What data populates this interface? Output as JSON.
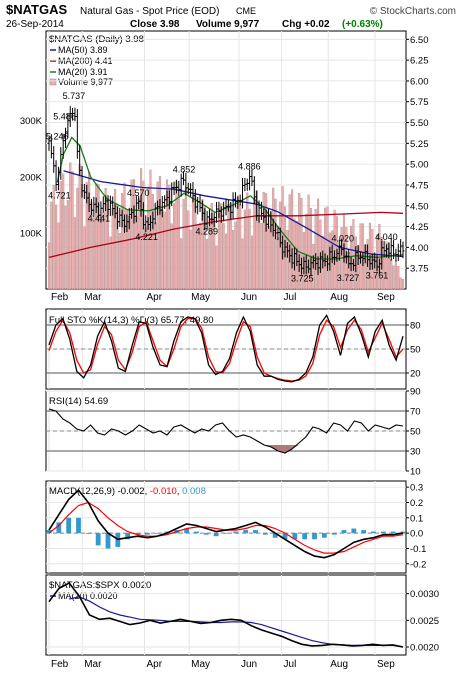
{
  "header": {
    "symbol": "$NATGAS",
    "description": "Natural Gas - Spot Price (EOD)",
    "exchange": "CME",
    "watermark": "© StockCharts.com",
    "date": "26-Sep-2014",
    "close_label": "Close 3.98",
    "volume_label": "Volume 9,977",
    "chg_label": "Chg +0.02",
    "chg_pct": "(+0.63%)"
  },
  "colors": {
    "price_bar": "#000000",
    "ma50": "#1a1a9a",
    "ma200": "#b00018",
    "ma20": "#1a7a1a",
    "volume": "#e8b0b0",
    "volume_edge": "#b08080",
    "fast_k": "#000000",
    "slow_d": "#ff0000",
    "macd_hist": "#3399cc",
    "rsi_fill": "#b07878",
    "panel_bg": "#ffffff",
    "grid": "#e6e6e6"
  },
  "chart_data": [
    {
      "panel": "price",
      "type": "ohlc",
      "title": "$NATGAS (Daily) 3.98",
      "legend": [
        {
          "name": "MA(50) 3.89",
          "color": "#1a1a9a"
        },
        {
          "name": "MA(200) 4.41",
          "color": "#b00018"
        },
        {
          "name": "MA(20) 3.91",
          "color": "#1a7a1a"
        },
        {
          "name": "Volume 9,977",
          "color": "#e8b0b0"
        }
      ],
      "ylim": [
        3.5,
        6.6
      ],
      "y_ticks": [
        "6.50",
        "6.25",
        "6.00",
        "5.75",
        "5.50",
        "5.25",
        "5.00",
        "4.75",
        "4.50",
        "4.25",
        "4.00",
        "3.75"
      ],
      "y_tick_values": [
        6.5,
        6.25,
        6.0,
        5.75,
        5.5,
        5.25,
        5.0,
        4.75,
        4.5,
        4.25,
        4.0,
        3.75
      ],
      "volume_ticks": [
        "300K",
        "200K",
        "100K"
      ],
      "volume_tick_values": [
        300000,
        200000,
        100000
      ],
      "volume_max": 460000,
      "annotations": [
        {
          "label": "5.737",
          "t": 24,
          "v": 5.737
        },
        {
          "label": "5.486",
          "t": 15,
          "v": 5.486
        },
        {
          "label": "5.246",
          "t": 8,
          "v": 5.246
        },
        {
          "label": "4.721",
          "t": 10,
          "v": 4.721
        },
        {
          "label": "4.441",
          "t": 48,
          "v": 4.441
        },
        {
          "label": "4.570",
          "t": 86,
          "v": 4.57
        },
        {
          "label": "4.852",
          "t": 130,
          "v": 4.852
        },
        {
          "label": "4.221",
          "t": 94,
          "v": 4.221
        },
        {
          "label": "4.289",
          "t": 152,
          "v": 4.289
        },
        {
          "label": "4.886",
          "t": 193,
          "v": 4.886
        },
        {
          "label": "4.020",
          "t": 283,
          "v": 4.02
        },
        {
          "label": "4.040",
          "t": 325,
          "v": 4.04
        },
        {
          "label": "3.725",
          "t": 244,
          "v": 3.725
        },
        {
          "label": "3.727",
          "t": 288,
          "v": 3.727
        },
        {
          "label": "3.761",
          "t": 316,
          "v": 3.761
        }
      ],
      "anchors": [
        [
          0,
          5.25
        ],
        [
          8,
          4.75
        ],
        [
          14,
          5.35
        ],
        [
          20,
          5.55
        ],
        [
          24,
          5.74
        ],
        [
          28,
          5.0
        ],
        [
          34,
          4.62
        ],
        [
          40,
          4.5
        ],
        [
          48,
          4.44
        ],
        [
          56,
          4.55
        ],
        [
          64,
          4.4
        ],
        [
          72,
          4.28
        ],
        [
          80,
          4.4
        ],
        [
          86,
          4.55
        ],
        [
          94,
          4.22
        ],
        [
          100,
          4.38
        ],
        [
          106,
          4.5
        ],
        [
          112,
          4.55
        ],
        [
          120,
          4.7
        ],
        [
          130,
          4.8
        ],
        [
          138,
          4.62
        ],
        [
          146,
          4.45
        ],
        [
          152,
          4.3
        ],
        [
          160,
          4.4
        ],
        [
          168,
          4.45
        ],
        [
          176,
          4.5
        ],
        [
          184,
          4.6
        ],
        [
          190,
          4.8
        ],
        [
          194,
          4.86
        ],
        [
          200,
          4.45
        ],
        [
          206,
          4.38
        ],
        [
          212,
          4.3
        ],
        [
          218,
          4.2
        ],
        [
          224,
          4.02
        ],
        [
          232,
          3.9
        ],
        [
          240,
          3.82
        ],
        [
          246,
          3.76
        ],
        [
          252,
          3.8
        ],
        [
          260,
          3.82
        ],
        [
          268,
          3.85
        ],
        [
          276,
          3.92
        ],
        [
          283,
          4.0
        ],
        [
          288,
          3.78
        ],
        [
          294,
          3.85
        ],
        [
          300,
          3.9
        ],
        [
          306,
          3.88
        ],
        [
          312,
          3.82
        ],
        [
          316,
          3.78
        ],
        [
          320,
          3.92
        ],
        [
          325,
          4.0
        ],
        [
          330,
          3.94
        ],
        [
          336,
          3.95
        ],
        [
          341,
          3.98
        ]
      ],
      "ma50": [
        [
          14,
          4.92
        ],
        [
          50,
          4.79
        ],
        [
          90,
          4.72
        ],
        [
          120,
          4.7
        ],
        [
          150,
          4.62
        ],
        [
          180,
          4.56
        ],
        [
          200,
          4.52
        ],
        [
          220,
          4.43
        ],
        [
          250,
          4.22
        ],
        [
          280,
          4.0
        ],
        [
          310,
          3.92
        ],
        [
          341,
          3.89
        ]
      ],
      "ma200": [
        [
          0,
          3.88
        ],
        [
          40,
          4.0
        ],
        [
          80,
          4.1
        ],
        [
          120,
          4.22
        ],
        [
          160,
          4.31
        ],
        [
          200,
          4.38
        ],
        [
          240,
          4.38
        ],
        [
          280,
          4.4
        ],
        [
          320,
          4.42
        ],
        [
          341,
          4.41
        ]
      ],
      "ma20": [
        [
          8,
          4.78
        ],
        [
          14,
          5.12
        ],
        [
          22,
          5.32
        ],
        [
          30,
          5.22
        ],
        [
          40,
          4.85
        ],
        [
          56,
          4.58
        ],
        [
          76,
          4.45
        ],
        [
          96,
          4.44
        ],
        [
          114,
          4.5
        ],
        [
          130,
          4.65
        ],
        [
          148,
          4.52
        ],
        [
          160,
          4.42
        ],
        [
          176,
          4.5
        ],
        [
          194,
          4.62
        ],
        [
          208,
          4.46
        ],
        [
          222,
          4.22
        ],
        [
          240,
          3.95
        ],
        [
          258,
          3.86
        ],
        [
          276,
          3.86
        ],
        [
          296,
          3.9
        ],
        [
          316,
          3.88
        ],
        [
          341,
          3.91
        ]
      ],
      "volume_profile": [
        [
          0,
          150000
        ],
        [
          20,
          200000
        ],
        [
          34,
          190000
        ],
        [
          60,
          150000
        ],
        [
          90,
          190000
        ],
        [
          120,
          170000
        ],
        [
          160,
          130000
        ],
        [
          200,
          155000
        ],
        [
          230,
          160000
        ],
        [
          260,
          140000
        ],
        [
          290,
          110000
        ],
        [
          320,
          100000
        ],
        [
          341,
          20000
        ]
      ]
    },
    {
      "panel": "stochastic",
      "type": "line",
      "title": "Full STO %K(14,3) %D(3) 65.77, 49.80",
      "ylim": [
        0,
        100
      ],
      "y_ticks": [
        "80",
        "50",
        "20"
      ],
      "y_tick_values": [
        80,
        50,
        20
      ],
      "series": [
        {
          "name": "%K(14,3)",
          "color": "#000000",
          "values": [
            55,
            80,
            88,
            62,
            22,
            14,
            30,
            66,
            84,
            60,
            26,
            22,
            55,
            84,
            82,
            52,
            30,
            28,
            60,
            84,
            90,
            88,
            70,
            30,
            18,
            22,
            38,
            70,
            90,
            72,
            30,
            16,
            16,
            12,
            10,
            9,
            12,
            20,
            40,
            80,
            92,
            72,
            42,
            82,
            90,
            68,
            40,
            72,
            86,
            55,
            36,
            66
          ]
        },
        {
          "name": "%D(3)",
          "color": "#ff0000",
          "values": [
            48,
            72,
            86,
            70,
            36,
            20,
            24,
            56,
            78,
            68,
            36,
            24,
            46,
            78,
            84,
            60,
            36,
            28,
            50,
            78,
            88,
            88,
            76,
            40,
            22,
            20,
            32,
            60,
            84,
            78,
            40,
            20,
            16,
            13,
            11,
            10,
            11,
            16,
            32,
            68,
            86,
            78,
            52,
            74,
            86,
            74,
            46,
            64,
            82,
            62,
            40,
            50
          ]
        }
      ]
    },
    {
      "panel": "rsi",
      "type": "line",
      "title": "RSI(14) 54.69",
      "ylim": [
        10,
        90
      ],
      "y_ticks": [
        "90",
        "70",
        "50",
        "30",
        "10"
      ],
      "y_tick_values": [
        90,
        70,
        50,
        30,
        10
      ],
      "series": [
        {
          "name": "RSI(14)",
          "color": "#000000",
          "values": [
            72,
            70,
            62,
            58,
            52,
            50,
            56,
            48,
            46,
            52,
            50,
            46,
            50,
            56,
            52,
            48,
            50,
            46,
            54,
            56,
            52,
            48,
            52,
            50,
            56,
            58,
            50,
            44,
            46,
            44,
            40,
            36,
            34,
            30,
            28,
            32,
            38,
            44,
            54,
            52,
            48,
            58,
            56,
            50,
            60,
            58,
            50,
            56,
            54,
            52,
            56,
            55
          ]
        }
      ]
    },
    {
      "panel": "macd",
      "type": "line",
      "title": "MACD(12,26,9) -0.002, -0.010, 0.008",
      "title_parts": [
        "MACD(12,26,9) -0.002, ",
        "-0.010",
        ", ",
        "0.008"
      ],
      "ylim": [
        -0.26,
        0.34
      ],
      "y_ticks": [
        "0.3",
        "0.2",
        "0.1",
        "0.0",
        "-0.1",
        "-0.2"
      ],
      "y_tick_values": [
        0.3,
        0.2,
        0.1,
        0.0,
        -0.1,
        -0.2
      ],
      "series": [
        {
          "name": "MACD(12,26,9)",
          "color": "#000000",
          "values": [
            0.02,
            0.12,
            0.22,
            0.28,
            0.2,
            0.08,
            0.0,
            -0.04,
            -0.03,
            -0.02,
            -0.03,
            -0.02,
            0.0,
            0.03,
            0.06,
            0.05,
            0.03,
            0.01,
            0.02,
            0.03,
            0.05,
            0.07,
            0.04,
            0.0,
            -0.04,
            -0.08,
            -0.12,
            -0.15,
            -0.16,
            -0.14,
            -0.1,
            -0.06,
            -0.04,
            -0.03,
            -0.01,
            -0.01,
            0.0
          ]
        },
        {
          "name": "Signal",
          "color": "#ff0000",
          "values": [
            0.0,
            0.05,
            0.12,
            0.18,
            0.2,
            0.16,
            0.1,
            0.05,
            0.01,
            -0.01,
            -0.02,
            -0.02,
            -0.01,
            0.01,
            0.03,
            0.04,
            0.04,
            0.03,
            0.02,
            0.02,
            0.03,
            0.05,
            0.05,
            0.03,
            0.0,
            -0.04,
            -0.08,
            -0.11,
            -0.13,
            -0.13,
            -0.12,
            -0.09,
            -0.06,
            -0.04,
            -0.02,
            -0.02,
            -0.01
          ]
        },
        {
          "name": "Histogram",
          "color": "#3399cc",
          "values": [
            0.02,
            0.07,
            0.1,
            0.1,
            0.0,
            -0.08,
            -0.1,
            -0.09,
            -0.04,
            -0.01,
            -0.01,
            0.0,
            0.01,
            0.02,
            0.03,
            0.01,
            -0.01,
            -0.02,
            0.0,
            0.01,
            0.02,
            0.02,
            -0.01,
            -0.03,
            -0.04,
            -0.04,
            -0.04,
            -0.04,
            -0.03,
            -0.01,
            0.02,
            0.03,
            0.02,
            0.01,
            0.01,
            0.01,
            0.01
          ]
        }
      ]
    },
    {
      "panel": "ratio",
      "type": "line",
      "title": "$NATGAS:$SPX 0.0020",
      "legend": [
        {
          "name": "MA(20) 0.0020",
          "color": "#1a1a9a"
        }
      ],
      "ylim": [
        0.00185,
        0.00335
      ],
      "y_ticks": [
        "0.0030",
        "0.0025",
        "0.0020"
      ],
      "y_tick_values": [
        0.003,
        0.0025,
        0.002
      ],
      "series": [
        {
          "name": "$NATGAS:$SPX",
          "color": "#000000",
          "values": [
            0.00285,
            0.0031,
            0.0032,
            0.00295,
            0.0026,
            0.00252,
            0.00254,
            0.00248,
            0.00242,
            0.00245,
            0.0025,
            0.00245,
            0.00248,
            0.00252,
            0.00248,
            0.00244,
            0.00246,
            0.0025,
            0.00252,
            0.0025,
            0.0024,
            0.00232,
            0.00226,
            0.0022,
            0.00212,
            0.00205,
            0.00202,
            0.00203,
            0.00205,
            0.00204,
            0.00202,
            0.00203,
            0.00205,
            0.00203,
            0.00204,
            0.002
          ]
        },
        {
          "name": "MA(20) 0.0020",
          "color": "#1a1a9a",
          "values": [
            null,
            null,
            0.0029,
            0.00294,
            0.00286,
            0.00275,
            0.00266,
            0.0026,
            0.00256,
            0.00252,
            0.00251,
            0.0025,
            0.00248,
            0.00248,
            0.00248,
            0.00247,
            0.00246,
            0.00246,
            0.00247,
            0.00247,
            0.00246,
            0.00242,
            0.00236,
            0.0023,
            0.00224,
            0.00218,
            0.00212,
            0.00208,
            0.00205,
            0.00204,
            0.00203,
            0.00203,
            0.00203,
            0.00203,
            0.00203,
            0.002
          ]
        }
      ]
    }
  ],
  "x_axis": {
    "months": [
      "Feb",
      "Mar",
      "Apr",
      "May",
      "Jun",
      "Jul",
      "Aug",
      "Sep"
    ],
    "month_positions": [
      0,
      32,
      92,
      135,
      183,
      224,
      269,
      314
    ]
  }
}
